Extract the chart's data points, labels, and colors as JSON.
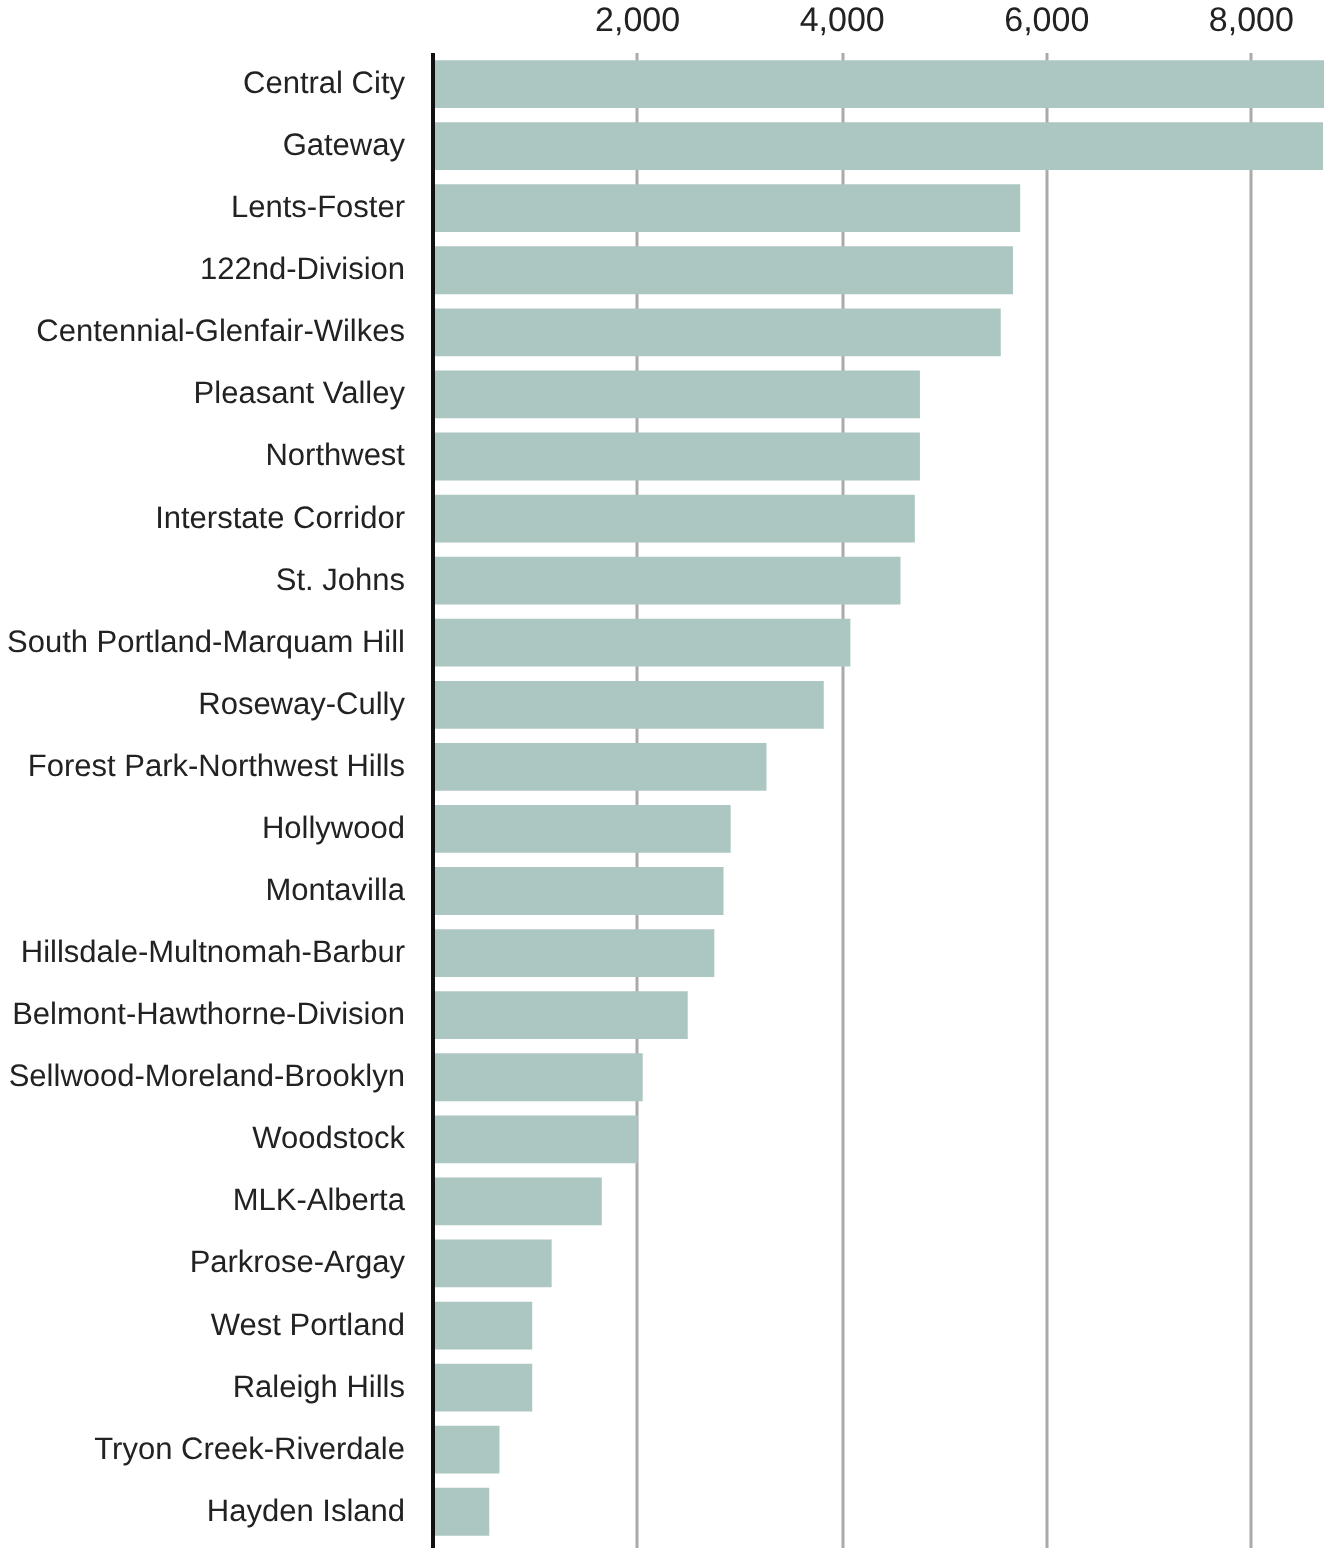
{
  "chart_data": {
    "type": "bar",
    "orientation": "horizontal",
    "categories": [
      "Central City",
      "Gateway",
      "Lents-Foster",
      "122nd-Division",
      "Centennial-Glenfair-Wilkes",
      "Pleasant Valley",
      "Northwest",
      "Interstate Corridor",
      "St. Johns",
      "South Portland-Marquam Hill",
      "Roseway-Cully",
      "Forest Park-Northwest Hills",
      "Hollywood",
      "Montavilla",
      "Hillsdale-Multnomah-Barbur",
      "Belmont-Hawthorne-Division",
      "Sellwood-Moreland-Brooklyn",
      "Woodstock",
      "MLK-Alberta",
      "Parkrose-Argay",
      "West Portland",
      "Raleigh Hills",
      "Tryon Creek-Riverdale",
      "Hayden Island"
    ],
    "values": [
      8720,
      8700,
      5740,
      5670,
      5550,
      4760,
      4760,
      4710,
      4570,
      4080,
      3820,
      3260,
      2910,
      2840,
      2750,
      2490,
      2050,
      2000,
      1650,
      1160,
      970,
      970,
      650,
      550
    ],
    "color": "#acc6c2",
    "xlim": [
      0,
      8720
    ],
    "xticks": [
      {
        "value": 2000,
        "label": "2,000"
      },
      {
        "value": 4000,
        "label": "4,000"
      },
      {
        "value": 6000,
        "label": "6,000"
      },
      {
        "value": 8000,
        "label": "8,000"
      }
    ],
    "grid": "x"
  }
}
